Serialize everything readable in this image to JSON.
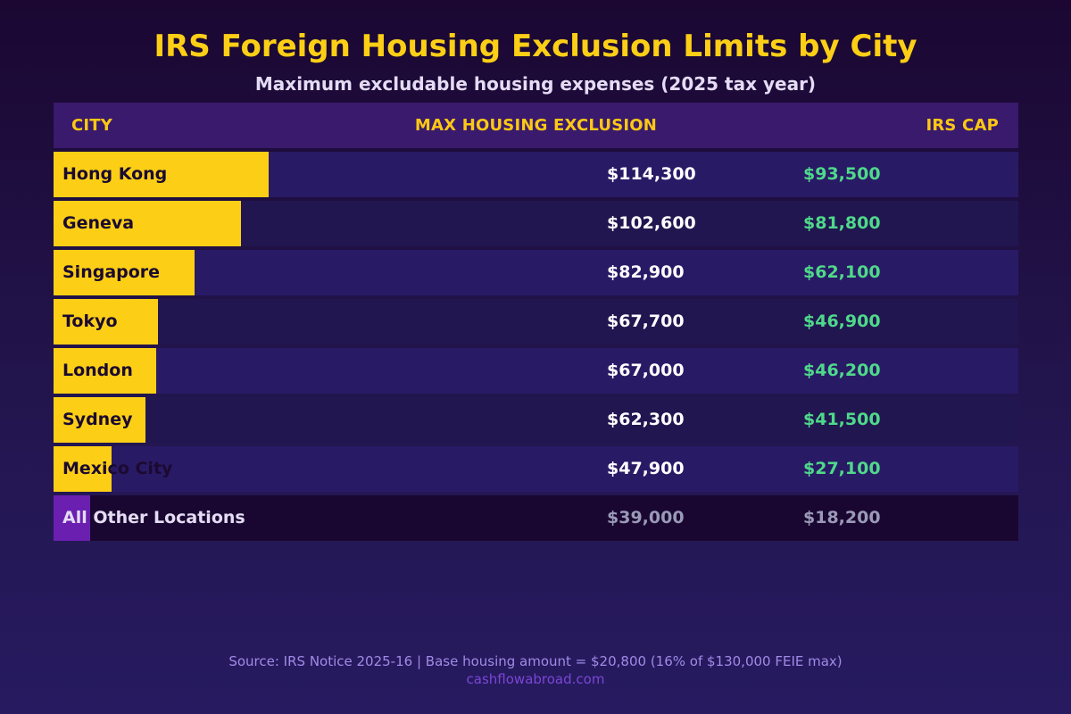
{
  "title": "IRS Foreign Housing Exclusion Limits by City",
  "subtitle": "Maximum excludable housing expenses (2025 tax year)",
  "headers": {
    "city": "CITY",
    "max": "MAX HOUSING EXCLUSION",
    "cap": "IRS CAP"
  },
  "footer": {
    "source": "Source: IRS Notice 2025-16 | Base housing amount = $20,800 (16% of $130,000 FEIE max)",
    "site": "cashflowabroad.com"
  },
  "colors": {
    "title": "#fccf16",
    "subtitle": "#e4dcf4",
    "header_bg": "#3a1a6c",
    "header_text": "#fcc814",
    "row_bg_a": "#291a66",
    "row_bg_b": "#211650",
    "row_bg_other": "#1a0731",
    "bar": "#fccf16",
    "bar_other": "#6b1fb0",
    "city_text": "#1b0a30",
    "city_text_other": "#e4dcf4",
    "max_text": "#ffffff",
    "max_text_other": "#9a9ab8",
    "cap_text": "#4fd98a",
    "cap_text_other": "#9a9ab8",
    "source_text": "#a08ae6",
    "site_text": "#7a46d6"
  },
  "chart_data": {
    "type": "bar",
    "orientation": "horizontal",
    "title": "IRS Foreign Housing Exclusion Limits by City",
    "subtitle": "Maximum excludable housing expenses (2025 tax year)",
    "xlim": [
      0,
      120000
    ],
    "categories": [
      "Hong Kong",
      "Geneva",
      "Singapore",
      "Tokyo",
      "London",
      "Sydney",
      "Mexico City",
      "All Other Locations"
    ],
    "series": [
      {
        "name": "MAX HOUSING EXCLUSION",
        "values": [
          114300,
          102600,
          82900,
          67700,
          67000,
          62300,
          47900,
          39000
        ],
        "labels": [
          "$114,300",
          "$102,600",
          "$82,900",
          "$67,700",
          "$67,000",
          "$62,300",
          "$47,900",
          "$39,000"
        ]
      },
      {
        "name": "IRS CAP",
        "values": [
          93500,
          81800,
          62100,
          46900,
          46200,
          41500,
          27100,
          18200
        ],
        "labels": [
          "$93,500",
          "$81,800",
          "$62,100",
          "$46,900",
          "$46,200",
          "$41,500",
          "$27,100",
          "$18,200"
        ]
      }
    ]
  }
}
